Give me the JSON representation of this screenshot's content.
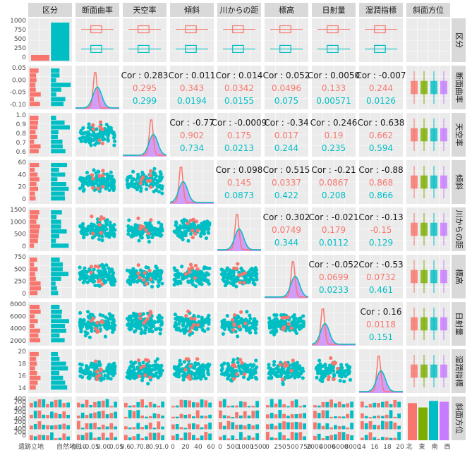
{
  "chart_data": {
    "type": "scatter",
    "title": "",
    "variables": [
      "区分",
      "断面曲率",
      "天空率",
      "傾斜",
      "川からの距",
      "標高",
      "日射量",
      "湿潤指標",
      "斜面方位"
    ],
    "colors": {
      "group_1": "#F8766D",
      "group_2": "#00BFC4",
      "orange": "#F8766D",
      "green": "#7CAE00",
      "teal": "#00BFC4",
      "purple": "#C77CFF",
      "panel_bg": "#EBEBEB",
      "strip_bg": "#D9D9D9",
      "grid": "#FFFFFF"
    },
    "groups": [
      "遺跡立地",
      "自然地形"
    ],
    "aspect_categories": [
      "北",
      "東",
      "南",
      "西"
    ],
    "x_tick_labels": [
      [
        "遺跡立地",
        "自然地形"
      ],
      [
        "-0.10",
        "-0.05",
        "0.00",
        "0.05"
      ],
      [
        "0.6",
        "0.7",
        "0.8",
        "0.9",
        "1.0"
      ],
      [
        "0",
        "20",
        "40",
        "60"
      ],
      [
        "0",
        "500",
        "1000",
        "1500"
      ],
      [
        "0",
        "250",
        "500",
        "750"
      ],
      [
        "2000",
        "4000",
        "6000",
        "8000"
      ],
      [
        "14",
        "16",
        "18",
        "20"
      ],
      [
        "北",
        "東",
        "南",
        "西"
      ]
    ],
    "y_tick_labels": [
      [
        "0",
        "250",
        "500",
        "750",
        "1000"
      ],
      [
        "-0.10",
        "-0.05",
        "0.00",
        "0.05"
      ],
      [
        "0.6",
        "0.7",
        "0.8",
        "0.9",
        "1.0"
      ],
      [
        "0",
        "20",
        "40",
        "60"
      ],
      [
        "0",
        "500",
        "1000",
        "1500"
      ],
      [
        "0",
        "250",
        "500",
        "750"
      ],
      [
        "2000",
        "4000",
        "6000",
        "8000"
      ],
      [
        "14",
        "16",
        "18",
        "20"
      ],
      [
        "0",
        "200",
        "400",
        "0",
        "200",
        "400",
        "0",
        "200",
        "400",
        "0",
        "200",
        "400"
      ]
    ],
    "correlations": [
      {
        "row": 1,
        "col": 2,
        "total": "Cor : 0.283",
        "g1": "0.295",
        "g2": "0.299"
      },
      {
        "row": 1,
        "col": 3,
        "total": "Cor : 0.011",
        "g1": "0.343",
        "g2": "0.0194"
      },
      {
        "row": 1,
        "col": 4,
        "total": "Cor : 0.014",
        "g1": "0.0342",
        "g2": "0.0155"
      },
      {
        "row": 1,
        "col": 5,
        "total": "Cor : 0.052",
        "g1": "0.0496",
        "g2": "0.075"
      },
      {
        "row": 1,
        "col": 6,
        "total": "Cor : 0.0050",
        "g1": "0.133",
        "g2": "0.00571"
      },
      {
        "row": 1,
        "col": 7,
        "total": "Cor : -0.007",
        "g1": "0.244",
        "g2": "0.0126"
      },
      {
        "row": 2,
        "col": 3,
        "total": "Cor : -0.77",
        "g1": "0.902",
        "g2": "0.734"
      },
      {
        "row": 2,
        "col": 4,
        "total": "Cor : -0.0009",
        "g1": "0.175",
        "g2": "0.0213"
      },
      {
        "row": 2,
        "col": 5,
        "total": "Cor : -0.34",
        "g1": "0.017",
        "g2": "0.244"
      },
      {
        "row": 2,
        "col": 6,
        "total": "Cor : 0.246",
        "g1": "0.19",
        "g2": "0.235"
      },
      {
        "row": 2,
        "col": 7,
        "total": "Cor : 0.638",
        "g1": "0.662",
        "g2": "0.594"
      },
      {
        "row": 3,
        "col": 4,
        "total": "Cor : 0.098",
        "g1": "0.145",
        "g2": "0.0873"
      },
      {
        "row": 3,
        "col": 5,
        "total": "Cor : 0.515",
        "g1": "0.0337",
        "g2": "0.422"
      },
      {
        "row": 3,
        "col": 6,
        "total": "Cor : -0.21",
        "g1": "0.0867",
        "g2": "0.208"
      },
      {
        "row": 3,
        "col": 7,
        "total": "Cor : -0.88",
        "g1": "0.868",
        "g2": "0.866"
      },
      {
        "row": 4,
        "col": 5,
        "total": "Cor : 0.302",
        "g1": "0.0749",
        "g2": "0.344"
      },
      {
        "row": 4,
        "col": 6,
        "total": "Cor : -0.021",
        "g1": "0.179",
        "g2": "0.0112"
      },
      {
        "row": 4,
        "col": 7,
        "total": "Cor : -0.13",
        "g1": "-0.15",
        "g2": "0.129"
      },
      {
        "row": 5,
        "col": 6,
        "total": "Cor : -0.052",
        "g1": "0.0699",
        "g2": "0.0233"
      },
      {
        "row": 5,
        "col": 7,
        "total": "Cor : -0.53",
        "g1": "0.0732",
        "g2": "0.461"
      },
      {
        "row": 6,
        "col": 7,
        "total": "Cor : 0.16",
        "g1": "0.0118",
        "g2": "0.151"
      }
    ]
  }
}
